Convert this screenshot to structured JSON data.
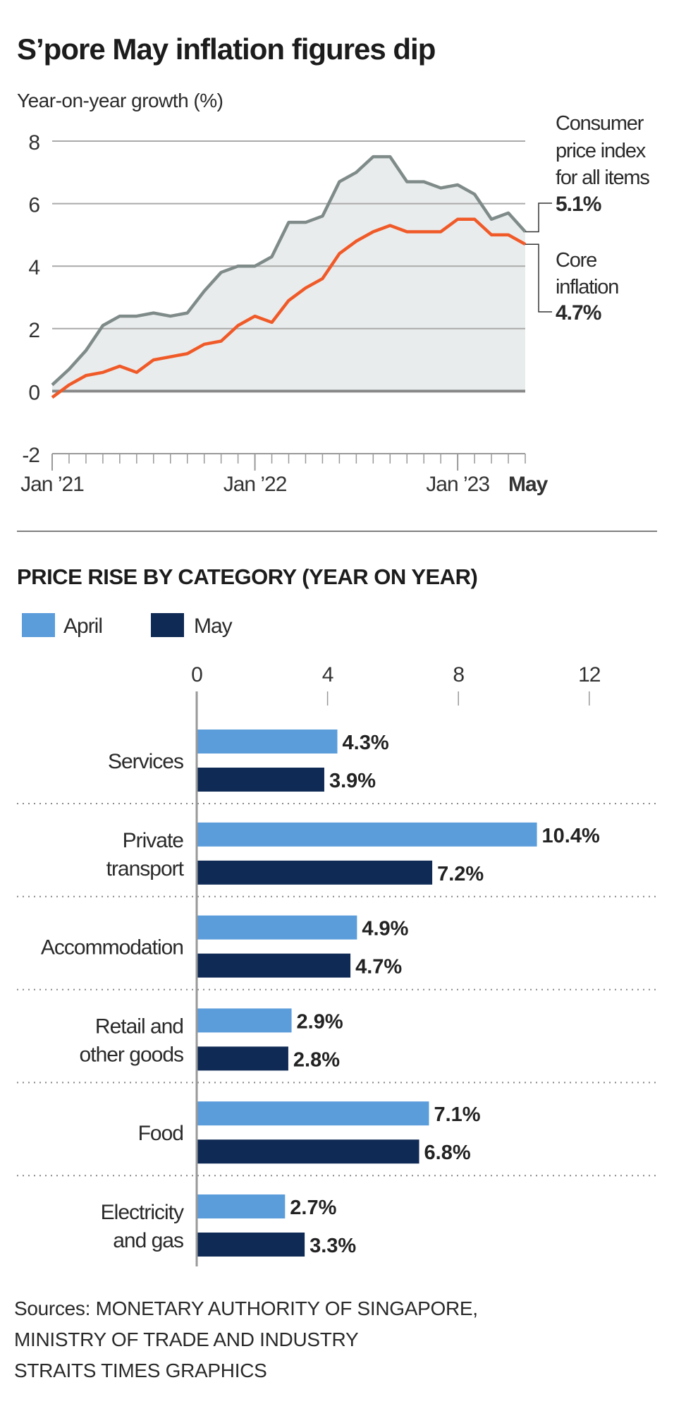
{
  "title": "S’pore May inflation figures dip",
  "colors": {
    "cpi": "#7f8b89",
    "core": "#f05a28",
    "fill": "#e9eced",
    "april": "#5b9cdb",
    "may": "#0f2a55"
  },
  "chart_data": [
    {
      "type": "line",
      "ylabel": "Year-on-year growth (%)",
      "ylim": [
        -2,
        8
      ],
      "yticks": [
        "8",
        "6",
        "4",
        "2",
        "0",
        "-2"
      ],
      "xtick_labels": [
        "Jan ’21",
        "Jan ’22",
        "Jan ’23",
        "May"
      ],
      "x": [
        "2021-01",
        "2021-02",
        "2021-03",
        "2021-04",
        "2021-05",
        "2021-06",
        "2021-07",
        "2021-08",
        "2021-09",
        "2021-10",
        "2021-11",
        "2021-12",
        "2022-01",
        "2022-02",
        "2022-03",
        "2022-04",
        "2022-05",
        "2022-06",
        "2022-07",
        "2022-08",
        "2022-09",
        "2022-10",
        "2022-11",
        "2022-12",
        "2023-01",
        "2023-02",
        "2023-03",
        "2023-04",
        "2023-05"
      ],
      "grid": true,
      "series": [
        {
          "name": "Consumer price index for all items",
          "name_lines": [
            "Consumer",
            "price index",
            "for all items"
          ],
          "end_label": "5.1%",
          "values": [
            0.2,
            0.7,
            1.3,
            2.1,
            2.4,
            2.4,
            2.5,
            2.4,
            2.5,
            3.2,
            3.8,
            4.0,
            4.0,
            4.3,
            5.4,
            5.4,
            5.6,
            6.7,
            7.0,
            7.5,
            7.5,
            6.7,
            6.7,
            6.5,
            6.6,
            6.3,
            5.5,
            5.7,
            5.1
          ]
        },
        {
          "name": "Core inflation",
          "name_lines": [
            "Core",
            "inflation"
          ],
          "end_label": "4.7%",
          "values": [
            -0.2,
            0.2,
            0.5,
            0.6,
            0.8,
            0.6,
            1.0,
            1.1,
            1.2,
            1.5,
            1.6,
            2.1,
            2.4,
            2.2,
            2.9,
            3.3,
            3.6,
            4.4,
            4.8,
            5.1,
            5.3,
            5.1,
            5.1,
            5.1,
            5.5,
            5.5,
            5.0,
            5.0,
            4.7
          ]
        }
      ]
    },
    {
      "type": "bar",
      "orientation": "horizontal",
      "title": "PRICE RISE BY CATEGORY (YEAR ON YEAR)",
      "xlim": [
        0,
        12
      ],
      "xticks": [
        "0",
        "4",
        "8",
        "12"
      ],
      "legend": "top-left",
      "categories": [
        [
          "Services"
        ],
        [
          "Private",
          "transport"
        ],
        [
          "Accommodation"
        ],
        [
          "Retail and",
          "other goods"
        ],
        [
          "Food"
        ],
        [
          "Electricity",
          "and gas"
        ]
      ],
      "series": [
        {
          "name": "April",
          "values": [
            4.3,
            10.4,
            4.9,
            2.9,
            7.1,
            2.7
          ],
          "labels": [
            "4.3%",
            "10.4%",
            "4.9%",
            "2.9%",
            "7.1%",
            "2.7%"
          ]
        },
        {
          "name": "May",
          "values": [
            3.9,
            7.2,
            4.7,
            2.8,
            6.8,
            3.3
          ],
          "labels": [
            "3.9%",
            "7.2%",
            "4.7%",
            "2.8%",
            "6.8%",
            "3.3%"
          ]
        }
      ]
    }
  ],
  "sources": [
    "Sources: MONETARY AUTHORITY OF SINGAPORE,",
    "MINISTRY OF TRADE AND INDUSTRY",
    "STRAITS TIMES GRAPHICS"
  ]
}
